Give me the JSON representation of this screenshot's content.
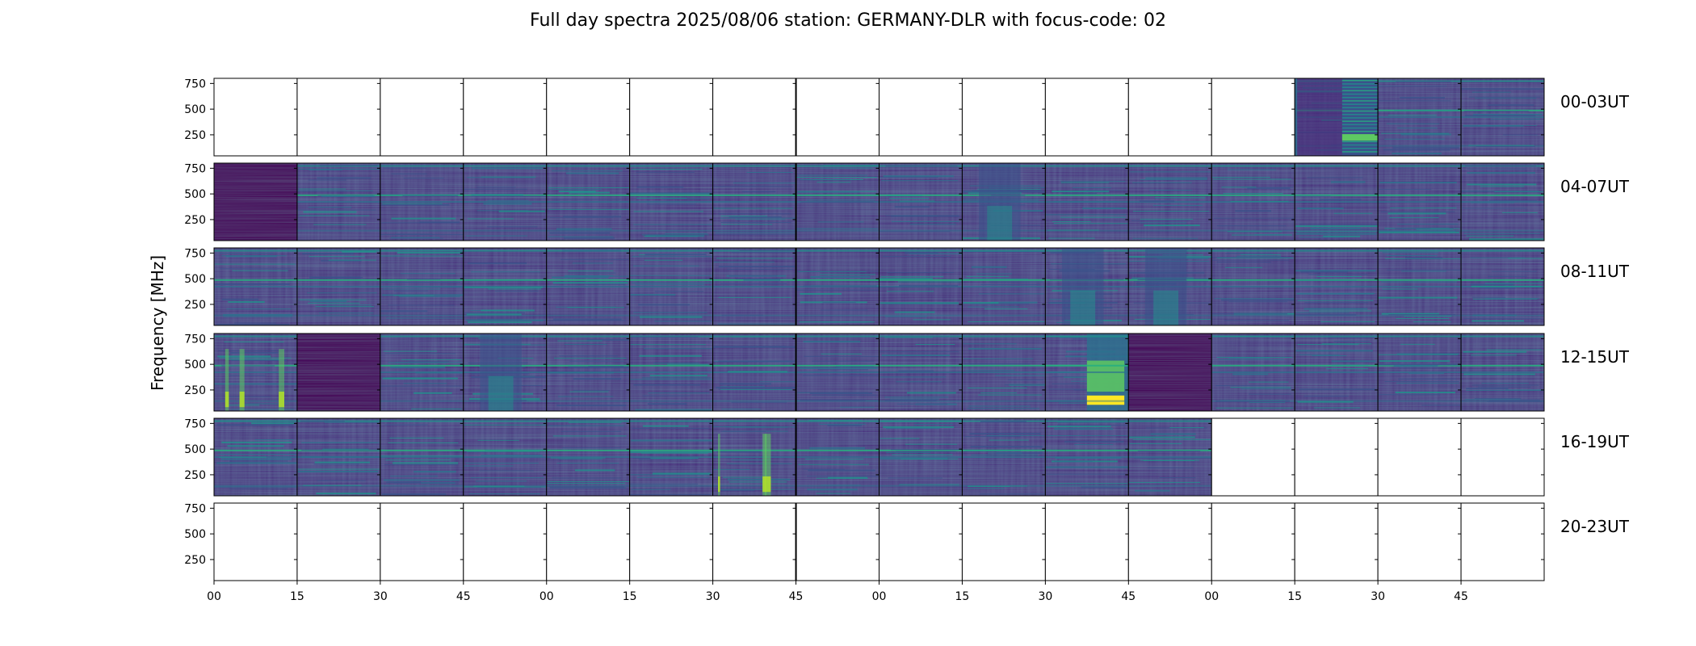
{
  "title": "Full day spectra 2025/08/06 station: GERMANY-DLR with focus-code: 02",
  "chart_data": {
    "type": "heatmap",
    "title": "Full day spectra 2025/08/06 station: GERMANY-DLR with focus-code: 02",
    "ylabel": "Frequency [MHz]",
    "colormap": "viridis",
    "colors": {
      "c0": "#440154",
      "c1": "#472c7a",
      "c2": "#3b528b",
      "c3": "#2c728e",
      "c4": "#21918c",
      "c5": "#28ae80",
      "c6": "#5ec962",
      "c7": "#addc30",
      "c8": "#fde725"
    },
    "yticks": [
      250,
      500,
      750
    ],
    "ylim": [
      45,
      800
    ],
    "xticks": [
      "00",
      "15",
      "30",
      "45",
      "00",
      "15",
      "30",
      "45",
      "00",
      "15",
      "30",
      "45",
      "00",
      "15",
      "30",
      "45"
    ],
    "rows": [
      {
        "label": "00-03UT",
        "cells": [
          0,
          0,
          0,
          0,
          0,
          0,
          0,
          0,
          0,
          0,
          0,
          0,
          0,
          6,
          2,
          2
        ]
      },
      {
        "label": "04-07UT",
        "cells": [
          1,
          2,
          2,
          2,
          2,
          2,
          2,
          2,
          2,
          3,
          2,
          2,
          2,
          2,
          2,
          2
        ]
      },
      {
        "label": "08-11UT",
        "cells": [
          2,
          2,
          2,
          2,
          2,
          2,
          2,
          2,
          2,
          2,
          3,
          3,
          2,
          2,
          2,
          2
        ]
      },
      {
        "label": "12-15UT",
        "cells": [
          4,
          1,
          2,
          3,
          2,
          2,
          2,
          2,
          2,
          2,
          5,
          1,
          2,
          2,
          2,
          2
        ]
      },
      {
        "label": "16-19UT",
        "cells": [
          2,
          2,
          2,
          2,
          2,
          2,
          4,
          2,
          2,
          2,
          2,
          2,
          0,
          0,
          0,
          0
        ]
      },
      {
        "label": "20-23UT",
        "cells": [
          0,
          0,
          0,
          0,
          0,
          0,
          0,
          0,
          0,
          0,
          0,
          0,
          0,
          0,
          0,
          0
        ]
      }
    ],
    "cell_state_legend": "0 = no data (blank), 1 = quiet background, 2 = background with persistent emission lines, 3 = broadband enhancement, 4 = strong vertical burst features, 5 = very strong burst (yellow), 6 = split block with dense emission lines"
  }
}
